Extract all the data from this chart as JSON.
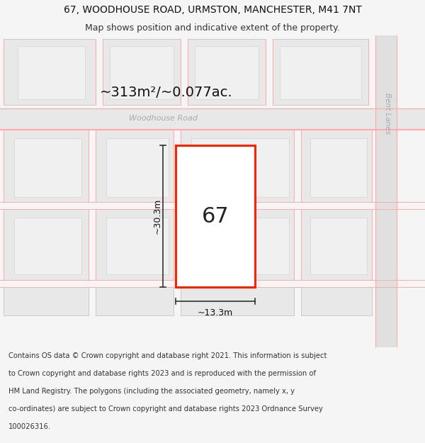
{
  "title_line1": "67, WOODHOUSE ROAD, URMSTON, MANCHESTER, M41 7NT",
  "title_line2": "Map shows position and indicative extent of the property.",
  "area_text": "~313m²/~0.077ac.",
  "street_name": "Woodhouse Road",
  "bent_lanes": "Bent Lanes",
  "property_number": "67",
  "width_label": "~13.3m",
  "height_label": "~30.3m",
  "footer_lines": [
    "Contains OS data © Crown copyright and database right 2021. This information is subject",
    "to Crown copyright and database rights 2023 and is reproduced with the permission of",
    "HM Land Registry. The polygons (including the associated geometry, namely x, y",
    "co-ordinates) are subject to Crown copyright and database rights 2023 Ordnance Survey",
    "100026316."
  ],
  "bg_color": "#f5f5f5",
  "map_bg": "#ffffff",
  "red_line_color": "#ff2200",
  "pink_line_color": "#ffaaaa",
  "dim_line_color": "#333333",
  "block_fill": "#e8e8e8",
  "block_stroke": "#bbbbbb",
  "inner_fill": "#f0f0f0",
  "inner_stroke": "#cccccc",
  "title_fontsize": 10,
  "subtitle_fontsize": 9,
  "footer_fontsize": 7.2
}
